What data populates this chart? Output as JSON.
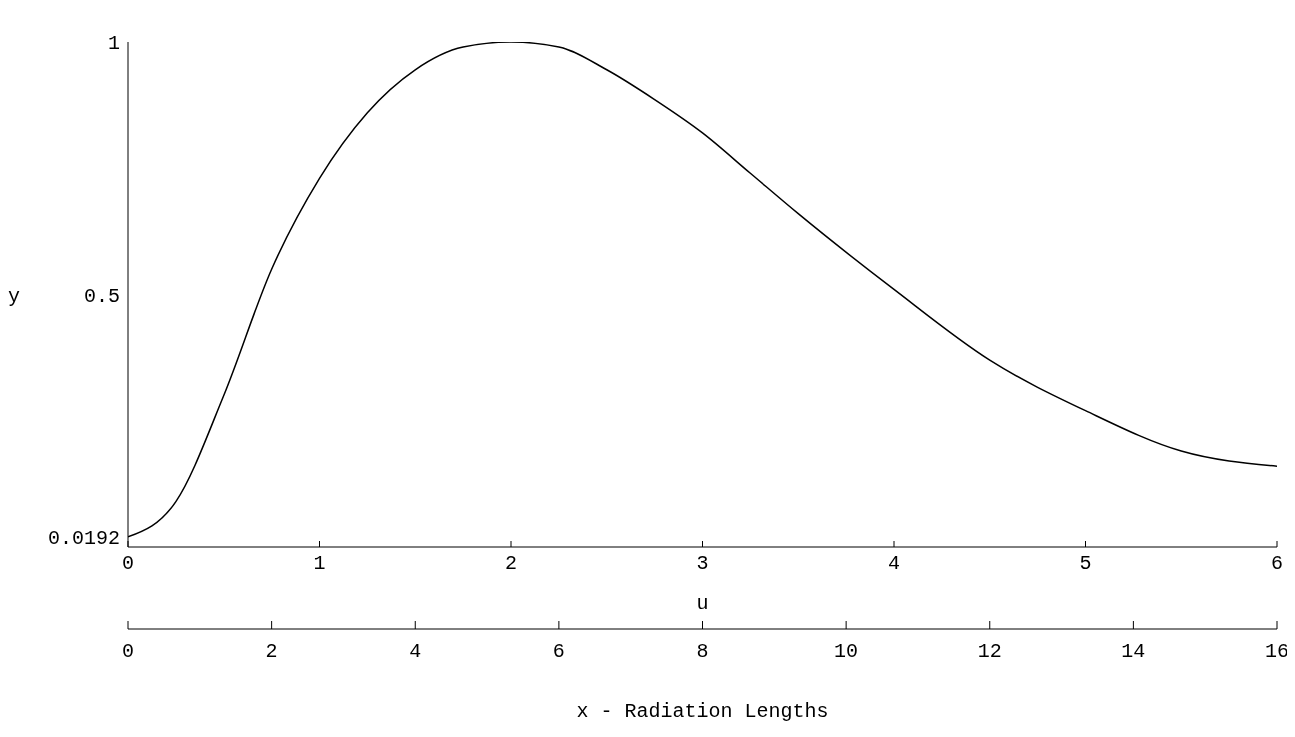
{
  "chart_data": {
    "type": "line",
    "xlabel": "u",
    "ylabel": "y",
    "x2label": "x - Radiation Lengths",
    "x": [
      0,
      0.25,
      0.5,
      0.75,
      1,
      1.25,
      1.5,
      1.75,
      2,
      2.25,
      2.5,
      2.75,
      3,
      3.25,
      3.5,
      4,
      4.5,
      5,
      5.5,
      6
    ],
    "series": [
      {
        "color": "#000000",
        "values": [
          0.02,
          0.09,
          0.3,
          0.55,
          0.73,
          0.86,
          0.945,
          0.99,
          1.0,
          0.99,
          0.945,
          0.886,
          0.82,
          0.74,
          0.66,
          0.51,
          0.37,
          0.27,
          0.19,
          0.16
        ]
      }
    ],
    "xlim": [
      0,
      6
    ],
    "xticks": [
      0,
      1,
      2,
      3,
      4,
      5,
      6
    ],
    "ylim": [
      0,
      1
    ],
    "yticks": [
      0.0192,
      0.5,
      1
    ],
    "x2lim": [
      0,
      16
    ],
    "x2ticks": [
      0,
      2,
      4,
      6,
      8,
      10,
      12,
      14,
      16
    ],
    "grid": false,
    "legend": false,
    "marker": "none",
    "line_style": "solid"
  }
}
